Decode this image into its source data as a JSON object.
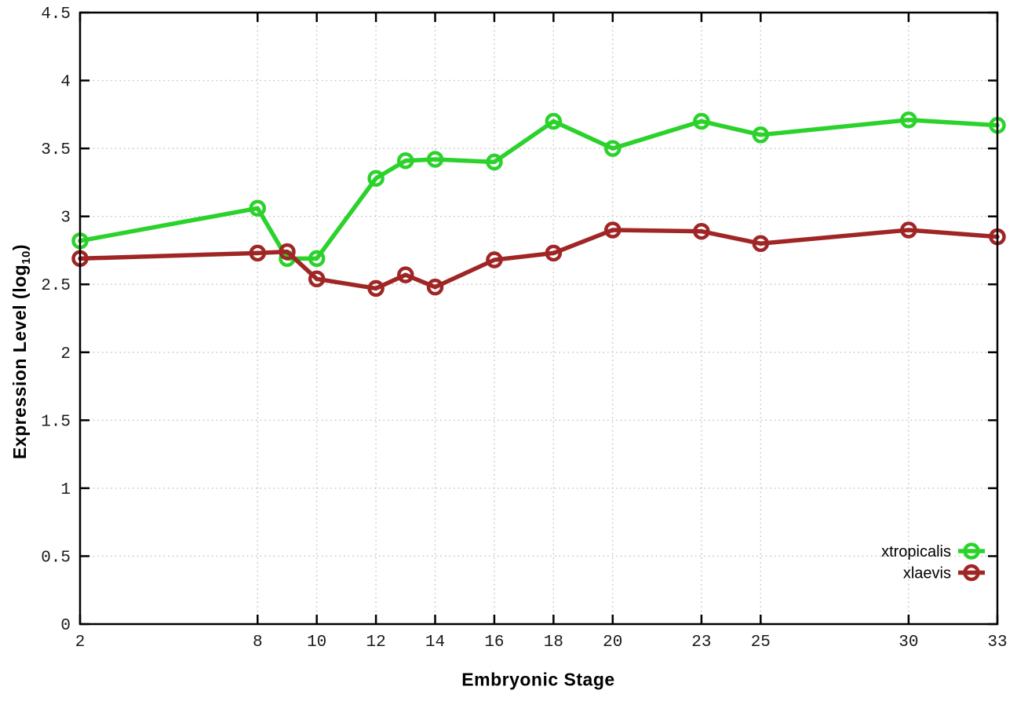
{
  "chart_data": {
    "type": "line",
    "title": "",
    "xlabel": "Embryonic Stage",
    "ylabel": {
      "prefix": "Expression Level (log",
      "sub": "10",
      "suffix": ")"
    },
    "xlim": [
      2,
      33
    ],
    "ylim": [
      0,
      4.5
    ],
    "x_ticks": [
      2,
      8,
      10,
      12,
      14,
      16,
      18,
      20,
      23,
      25,
      30,
      33
    ],
    "x_tick_labels": [
      "2",
      "8",
      "10",
      "12",
      "14",
      "16",
      "18",
      "20",
      "23",
      "25",
      "30",
      "33"
    ],
    "y_ticks": [
      0,
      0.5,
      1,
      1.5,
      2,
      2.5,
      3,
      3.5,
      4,
      4.5
    ],
    "y_tick_labels": [
      "0",
      "0.5",
      "1",
      "1.5",
      "2",
      "2.5",
      "3",
      "3.5",
      "4",
      "4.5"
    ],
    "grid": "dotted",
    "legend_position": "bottom-right",
    "x": [
      2,
      8,
      9,
      10,
      12,
      13,
      14,
      16,
      18,
      20,
      23,
      25,
      30,
      33
    ],
    "series": [
      {
        "name": "xtropicalis",
        "color": "#2bd22b",
        "values": [
          2.82,
          3.06,
          2.69,
          2.69,
          3.28,
          3.41,
          3.42,
          3.4,
          3.7,
          3.5,
          3.7,
          3.6,
          3.71,
          3.67
        ]
      },
      {
        "name": "xlaevis",
        "color": "#a02626",
        "values": [
          2.69,
          2.73,
          2.74,
          2.54,
          2.47,
          2.57,
          2.48,
          2.68,
          2.73,
          2.9,
          2.89,
          2.8,
          2.9,
          2.85
        ]
      }
    ]
  },
  "colors": {
    "background": "#ffffff",
    "axis": "#000000",
    "grid": "#c3c3c3",
    "tick_label": "#1a1a1a",
    "series_green": "#2bd22b",
    "series_red": "#a02626"
  }
}
